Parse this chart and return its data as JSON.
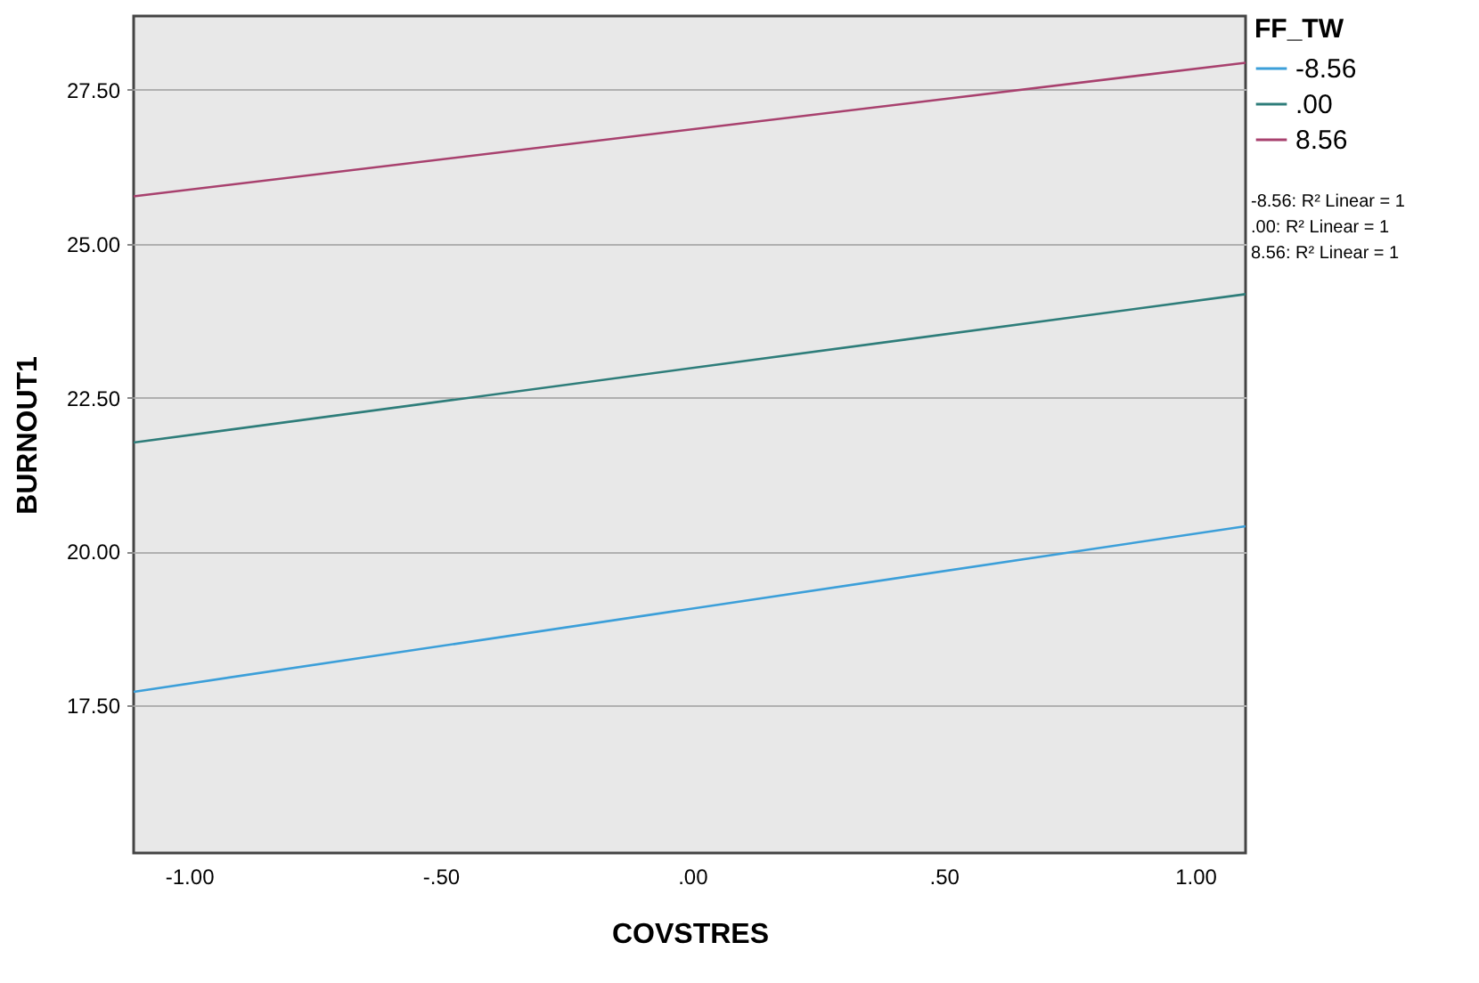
{
  "chart_data": {
    "type": "line",
    "xlabel": "COVSTRES",
    "ylabel": "BURNOUT1",
    "legend_title": "FF_TW",
    "x": [
      -1.11,
      1.1
    ],
    "series": [
      {
        "name": "-8.56",
        "color": "#3c9fd9",
        "values": [
          17.72,
          20.41
        ]
      },
      {
        "name": ".00",
        "color": "#2e7d7a",
        "values": [
          21.77,
          24.18
        ]
      },
      {
        "name": "8.56",
        "color": "#a8416e",
        "values": [
          25.77,
          27.94
        ]
      }
    ],
    "xlim": [
      -1.11,
      1.1
    ],
    "xticks": [
      {
        "value": -1,
        "label": "-1.00"
      },
      {
        "value": -0.5,
        "label": "-.50"
      },
      {
        "value": 0,
        "label": ".00"
      },
      {
        "value": 0.5,
        "label": ".50"
      },
      {
        "value": 1,
        "label": "1.00"
      }
    ],
    "ylim": [
      15.1,
      28.7
    ],
    "yticks": [
      {
        "value": 17.5,
        "label": "17.50"
      },
      {
        "value": 20,
        "label": "20.00"
      },
      {
        "value": 22.5,
        "label": "22.50"
      },
      {
        "value": 25,
        "label": "25.00"
      },
      {
        "value": 27.5,
        "label": "27.50"
      }
    ],
    "grid": "y",
    "legend": "top right",
    "marker": "none",
    "line_style": "solid",
    "annotations": [
      "-8.56: R² Linear = 1",
      ".00: R² Linear = 1",
      "8.56: R² Linear = 1"
    ]
  }
}
